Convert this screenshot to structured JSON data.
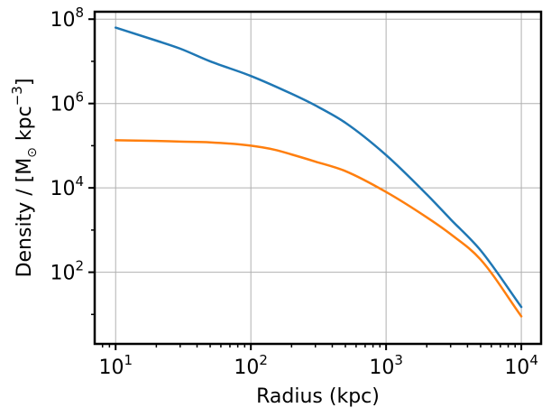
{
  "chart_data": {
    "type": "line",
    "title": "",
    "xlabel": "Radius (kpc)",
    "ylabel_parts": [
      "Density / [M",
      "⊙",
      " kpc",
      "−3",
      "]"
    ],
    "xscale": "log",
    "yscale": "log",
    "xlim": [
      7,
      14000
    ],
    "ylim": [
      2.0,
      150000000
    ],
    "grid": true,
    "legend": "none",
    "x_ticks": [
      {
        "value": 10,
        "base": "10",
        "exp": "1"
      },
      {
        "value": 100,
        "base": "10",
        "exp": "2"
      },
      {
        "value": 1000,
        "base": "10",
        "exp": "3"
      },
      {
        "value": 10000,
        "base": "10",
        "exp": "4"
      }
    ],
    "y_ticks": [
      {
        "value": 100,
        "base": "10",
        "exp": "2"
      },
      {
        "value": 10000,
        "base": "10",
        "exp": "4"
      },
      {
        "value": 1000000,
        "base": "10",
        "exp": "6"
      },
      {
        "value": 100000000,
        "base": "10",
        "exp": "8"
      }
    ],
    "series": [
      {
        "color": "#1f77b4",
        "x": [
          10,
          20,
          30,
          50,
          100,
          200,
          300,
          500,
          1000,
          2000,
          3000,
          5000,
          10000
        ],
        "y": [
          63000000,
          31000000,
          20000000,
          10000000,
          4500000,
          1700000,
          900000,
          350000,
          60000,
          7000,
          1800,
          330,
          15
        ]
      },
      {
        "color": "#ff7f0e",
        "x": [
          10,
          20,
          30,
          50,
          100,
          150,
          200,
          300,
          500,
          1000,
          2000,
          3000,
          5000,
          10000
        ],
        "y": [
          135000,
          130000,
          125000,
          120000,
          100000,
          80000,
          62000,
          42000,
          25000,
          8000,
          2000,
          800,
          200,
          9
        ]
      }
    ]
  }
}
